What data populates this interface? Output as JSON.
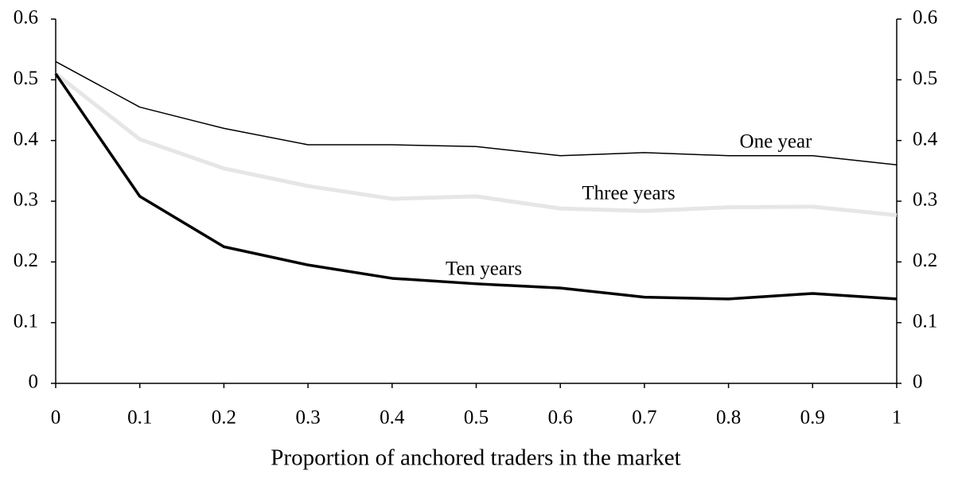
{
  "chart_data": {
    "type": "line",
    "x_label": "Proportion of anchored traders in the market",
    "x": [
      0,
      0.1,
      0.2,
      0.3,
      0.4,
      0.5,
      0.6,
      0.7,
      0.8,
      0.9,
      1
    ],
    "series": [
      {
        "name": "One year",
        "color": "#000000",
        "values": [
          0.53,
          0.455,
          0.42,
          0.393,
          0.393,
          0.39,
          0.375,
          0.38,
          0.375,
          0.375,
          0.36
        ]
      },
      {
        "name": "Three years",
        "color": "#e6e6e6",
        "values": [
          0.51,
          0.402,
          0.354,
          0.325,
          0.304,
          0.308,
          0.288,
          0.284,
          0.29,
          0.291,
          0.277
        ]
      },
      {
        "name": "Ten years",
        "color": "#000000",
        "values": [
          0.51,
          0.308,
          0.225,
          0.195,
          0.173,
          0.164,
          0.157,
          0.142,
          0.139,
          0.148,
          0.139
        ]
      }
    ],
    "xlim": [
      0,
      1
    ],
    "xticks": [
      0,
      0.1,
      0.2,
      0.3,
      0.4,
      0.5,
      0.6,
      0.7,
      0.8,
      0.9,
      1
    ],
    "ylim": [
      0,
      0.6
    ],
    "yticks": [
      0,
      0.1,
      0.2,
      0.3,
      0.4,
      0.5,
      0.6
    ],
    "y2lim": [
      0,
      0.6
    ],
    "y2ticks": [
      0,
      0.1,
      0.2,
      0.3,
      0.4,
      0.5,
      0.6
    ],
    "grid": false
  }
}
